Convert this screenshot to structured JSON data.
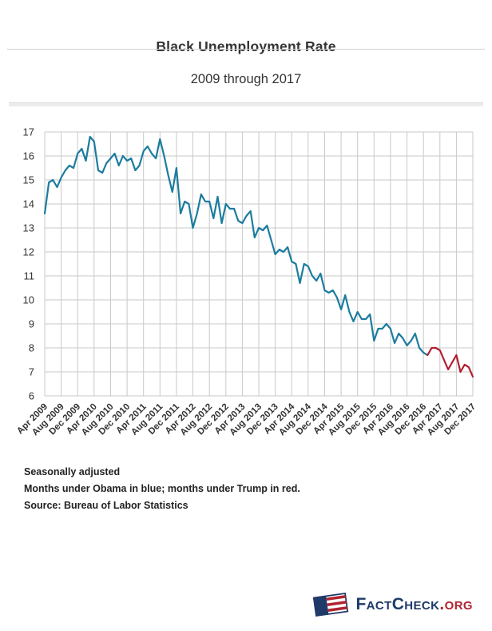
{
  "header": {
    "title": "Black Unemployment Rate",
    "subtitle": "2009 through 2017"
  },
  "notes": [
    "Seasonally adjusted",
    "Months under Obama in blue; months under Trump in red.",
    "Source: Bureau of Labor Statistics"
  ],
  "footer": {
    "brand_main": "FactCheck",
    "brand_suffix": ".org",
    "brand_color": "#1f3a68",
    "brand_accent": "#b02430"
  },
  "chart_data": {
    "type": "line",
    "title": "Black Unemployment Rate",
    "subtitle": "2009 through 2017",
    "ylabel": "",
    "xlabel": "",
    "ylim": [
      6,
      17
    ],
    "yticks": [
      6,
      7,
      8,
      9,
      10,
      11,
      12,
      13,
      14,
      15,
      16,
      17
    ],
    "grid": true,
    "grid_color": "#c9c9c9",
    "legend_position": "none",
    "x_tick_labels": [
      "Apr 2009",
      "Aug 2009",
      "Dec 2009",
      "Apr 2010",
      "Aug 2010",
      "Dec 2010",
      "Apr 2011",
      "Aug 2011",
      "Dec 2011",
      "Apr 2012",
      "Aug 2012",
      "Dec 2012",
      "Apr 2013",
      "Aug 2013",
      "Dec 2013",
      "Apr 2014",
      "Aug 2014",
      "Dec 2014",
      "Apr 2015",
      "Aug 2015",
      "Dec 2015",
      "Apr 2016",
      "Aug 2016",
      "Dec 2016",
      "Apr 2017",
      "Aug 2017",
      "Dec 2017"
    ],
    "points_per_tick": 4,
    "values": [
      13.6,
      14.9,
      15.0,
      14.7,
      15.1,
      15.4,
      15.6,
      15.5,
      16.1,
      16.3,
      15.8,
      16.8,
      16.6,
      15.4,
      15.3,
      15.7,
      15.9,
      16.1,
      15.6,
      16.0,
      15.8,
      15.9,
      15.4,
      15.6,
      16.2,
      16.4,
      16.1,
      15.9,
      16.7,
      16.0,
      15.2,
      14.5,
      15.5,
      13.6,
      14.1,
      14.0,
      13.0,
      13.6,
      14.4,
      14.1,
      14.1,
      13.4,
      14.3,
      13.2,
      14.0,
      13.8,
      13.8,
      13.3,
      13.2,
      13.5,
      13.7,
      12.6,
      13.0,
      12.9,
      13.1,
      12.5,
      11.9,
      12.1,
      12.0,
      12.2,
      11.6,
      11.5,
      10.7,
      11.5,
      11.4,
      11.0,
      10.8,
      11.1,
      10.4,
      10.3,
      10.4,
      10.1,
      9.6,
      10.2,
      9.5,
      9.1,
      9.5,
      9.2,
      9.2,
      9.4,
      8.3,
      8.8,
      8.8,
      9.0,
      8.8,
      8.2,
      8.6,
      8.4,
      8.1,
      8.3,
      8.6,
      8.0,
      7.8,
      7.7,
      8.0,
      8.0,
      7.9,
      7.5,
      7.1,
      7.4,
      7.7,
      7.0,
      7.3,
      7.2,
      6.8
    ],
    "series": [
      {
        "name": "Months under Obama",
        "color": "#1b7c9e",
        "start_index": 0,
        "end_index": 93
      },
      {
        "name": "Months under Trump",
        "color": "#b01e2e",
        "start_index": 93,
        "end_index": 104
      }
    ]
  }
}
